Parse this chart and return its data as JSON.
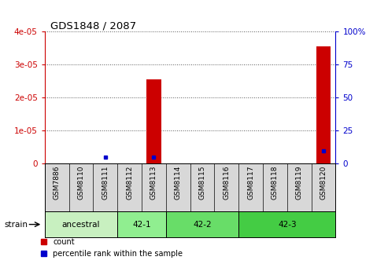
{
  "title": "GDS1848 / 2087",
  "samples": [
    "GSM7886",
    "GSM8110",
    "GSM8111",
    "GSM8112",
    "GSM8113",
    "GSM8114",
    "GSM8115",
    "GSM8116",
    "GSM8117",
    "GSM8118",
    "GSM8119",
    "GSM8120"
  ],
  "count_values": [
    0,
    0,
    0,
    0,
    2.55e-05,
    0,
    0,
    0,
    0,
    0,
    0,
    3.55e-05
  ],
  "percentile_values": [
    0,
    0,
    5,
    0,
    5,
    0,
    0,
    0,
    0,
    0,
    0,
    10
  ],
  "strain_groups": [
    {
      "label": "ancestral",
      "start": 0,
      "end": 3,
      "color": "#c8f0c0"
    },
    {
      "label": "42-1",
      "start": 3,
      "end": 5,
      "color": "#90ee90"
    },
    {
      "label": "42-2",
      "start": 5,
      "end": 8,
      "color": "#68dd68"
    },
    {
      "label": "42-3",
      "start": 8,
      "end": 12,
      "color": "#44cc44"
    }
  ],
  "count_color": "#cc0000",
  "percentile_color": "#0000cc",
  "bar_width": 0.6,
  "ylim_count": [
    0,
    4e-05
  ],
  "ylim_percentile": [
    0,
    100
  ],
  "yticks_count": [
    0,
    1e-05,
    2e-05,
    3e-05,
    4e-05
  ],
  "ytick_labels_count": [
    "0",
    "1e-05",
    "2e-05",
    "3e-05",
    "4e-05"
  ],
  "yticks_percentile": [
    0,
    25,
    50,
    75,
    100
  ],
  "ytick_labels_percentile": [
    "0",
    "25",
    "50",
    "75",
    "100%"
  ],
  "grid_color": "#555555",
  "background_color": "#ffffff",
  "xlabel_bg_color": "#d8d8d8",
  "strain_label": "strain"
}
